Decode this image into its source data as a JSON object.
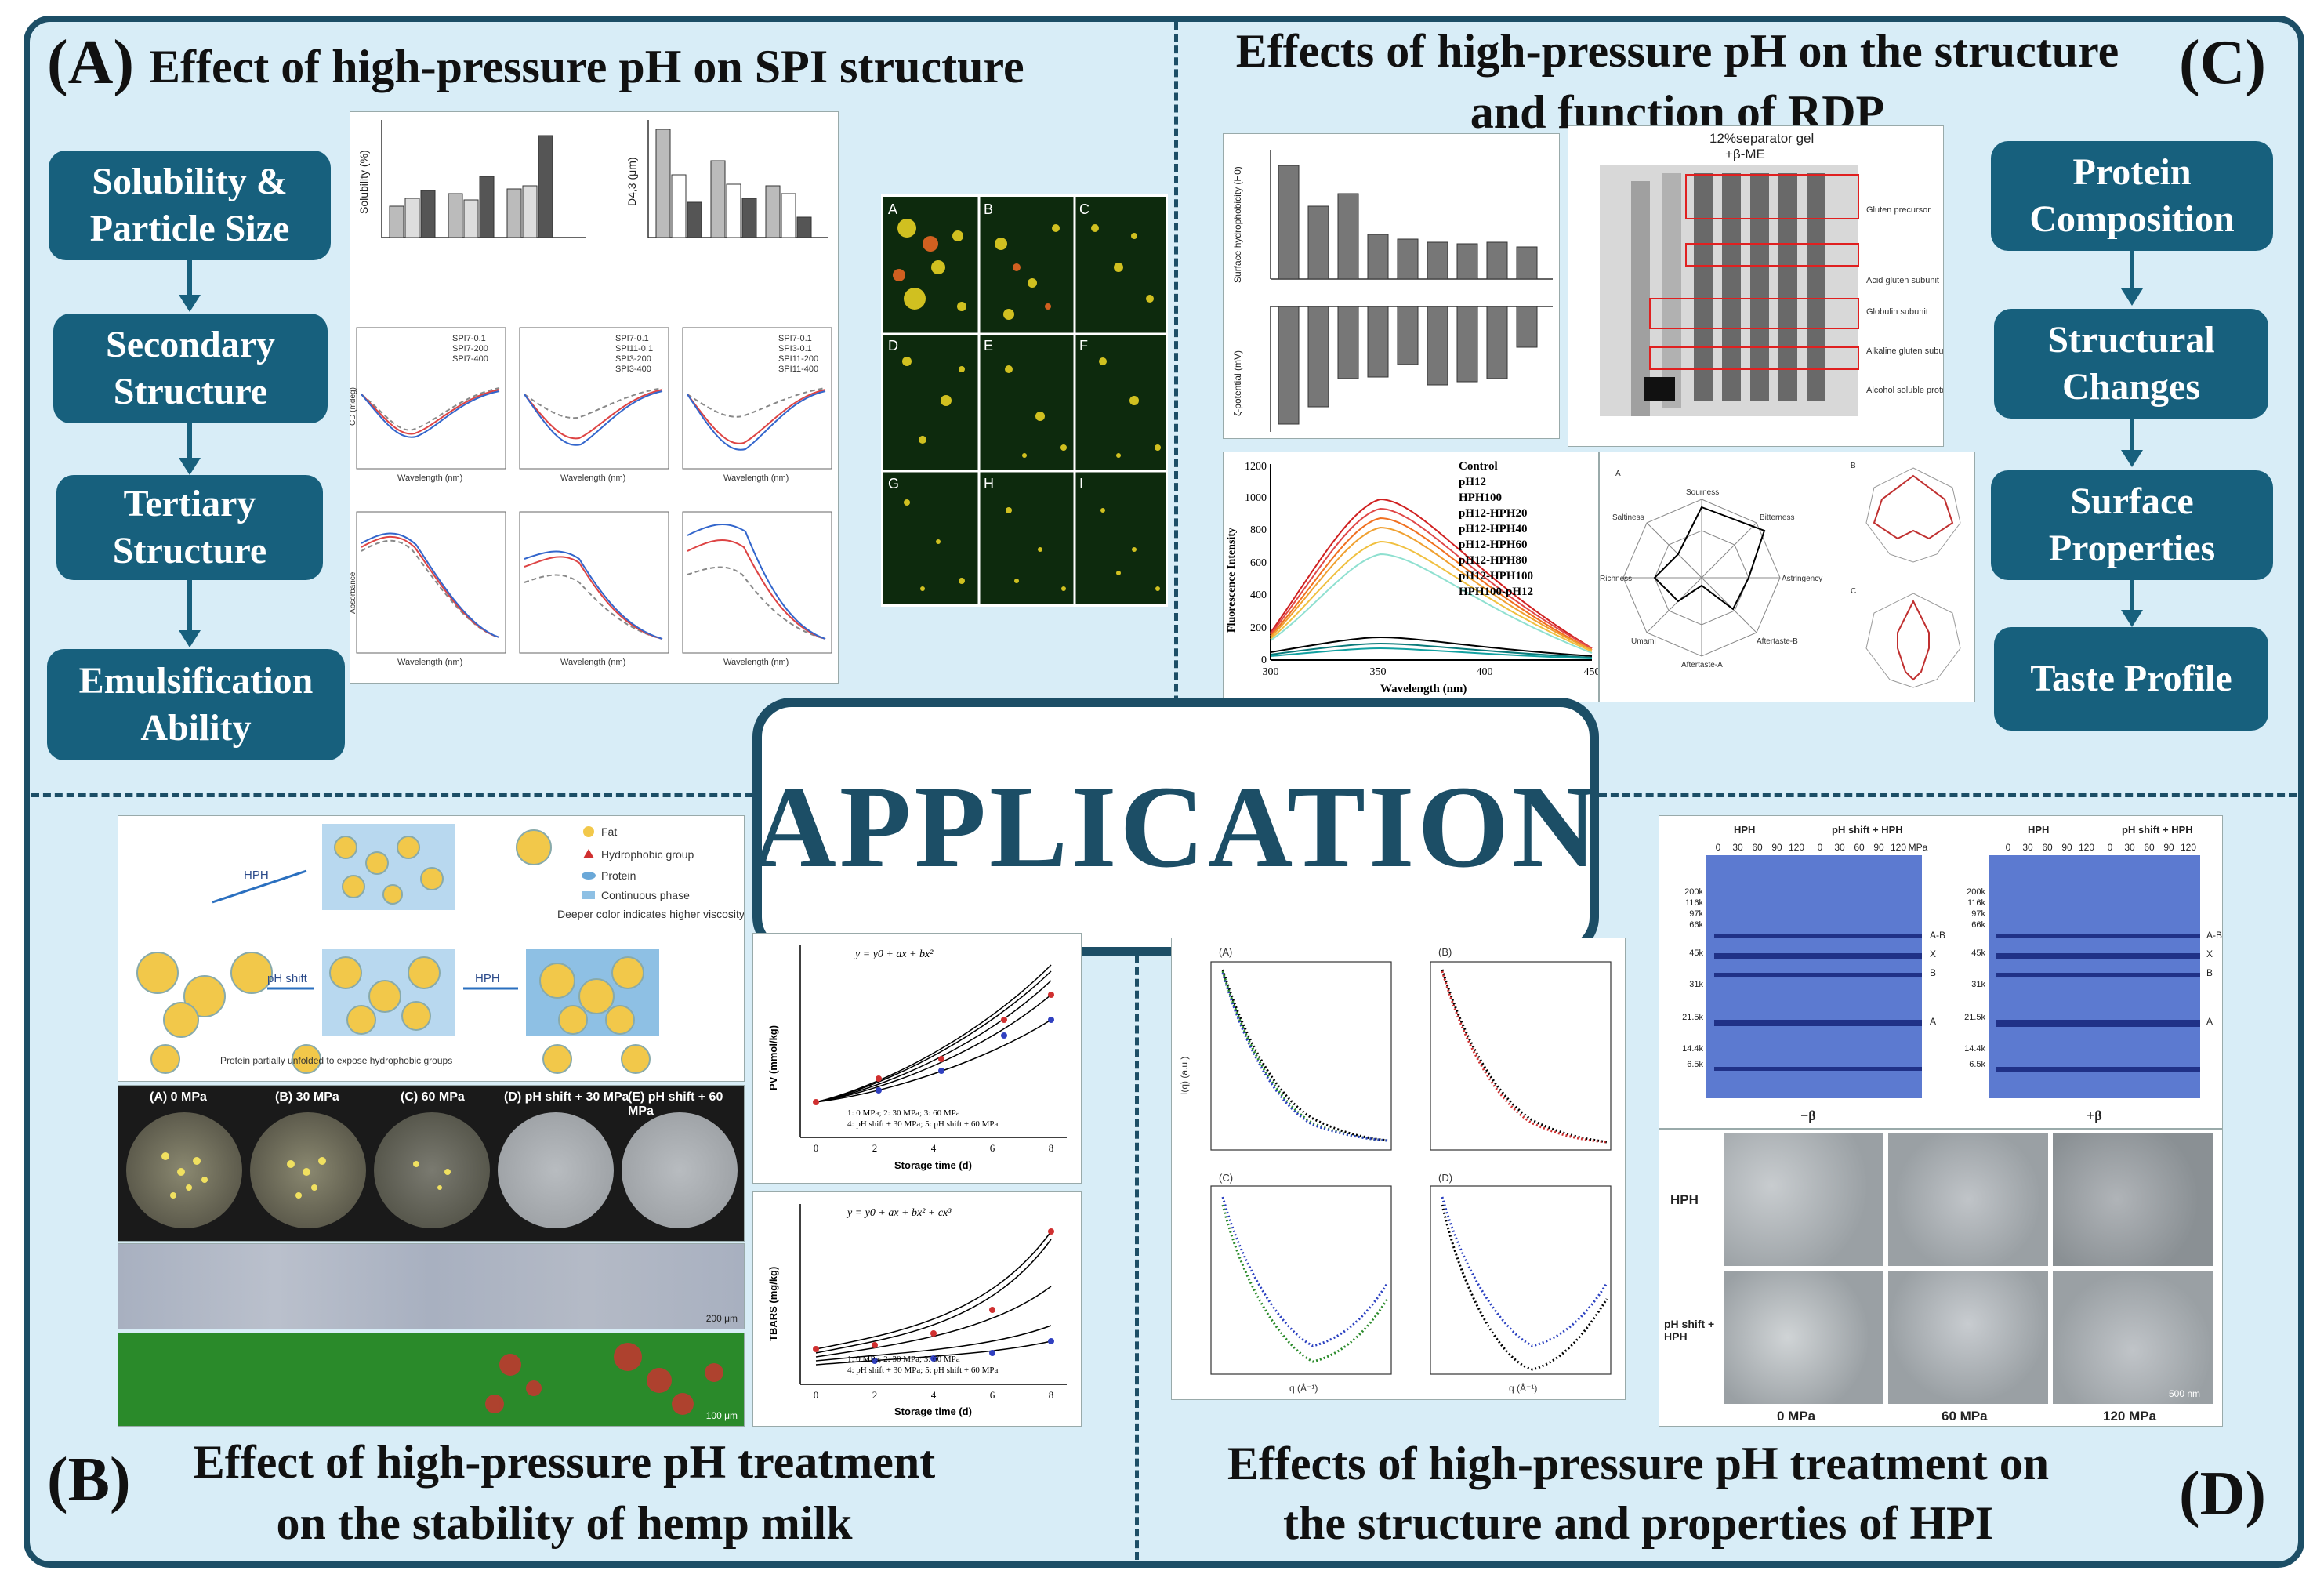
{
  "panel_a": {
    "label": "(A)",
    "title": "Effect of high-pressure pH on SPI structure",
    "flow": [
      "Solubility & Particle Size",
      "Secondary Structure",
      "Tertiary Structure",
      "Emulsification Ability"
    ],
    "chart_labels": {
      "solubility_axis": "Solubility (%)",
      "d43_axis": "D4,3 (μm)",
      "cd_axis": "CD (mdeg)",
      "abs_axis": "Absorbance",
      "wavelength": "Wavelength (nm)"
    },
    "legends": {
      "cd1": [
        "SPI7-0.1",
        "SPI7-200",
        "SPI7-400"
      ],
      "cd2": [
        "SPI7-0.1",
        "SPI11-0.1",
        "SPI3-200",
        "SPI3-400"
      ],
      "cd3": [
        "SPI7-0.1",
        "SPI3-0.1",
        "SPI11-200",
        "SPI11-400"
      ]
    },
    "micro_labels": [
      "A",
      "B",
      "C",
      "D",
      "E",
      "F",
      "G",
      "H",
      "I"
    ]
  },
  "panel_c": {
    "label": "(C)",
    "title_line1": "Effects of high-pressure pH on the structure",
    "title_line2": "and function of RDP",
    "flow": [
      "Protein Composition",
      "Structural Changes",
      "Surface Properties",
      "Taste Profile"
    ],
    "surface_axis": "Surface hydrophobicity (H0)",
    "zeta_axis": "ζ-potential (mV)",
    "gel_title": "12%separator gel",
    "gel_subtitle": "+β-ME",
    "gel_bands": [
      "Gluten precursor",
      "Acid gluten subunit",
      "Globulin subunit",
      "Alkaline gluten subunit",
      "Alcohol soluble protein subunits"
    ],
    "fluor_axis": "Fluorescence Intensity",
    "fluor_xlabel": "Wavelength (nm)",
    "fluor_legend": [
      "Control",
      "pH12",
      "HPH100",
      "pH12-HPH20",
      "pH12-HPH40",
      "pH12-HPH60",
      "pH12-HPH80",
      "pH12-HPH100",
      "HPH100-pH12"
    ],
    "fluor_yticks": [
      "0",
      "200",
      "400",
      "600",
      "800",
      "1000",
      "1200"
    ],
    "fluor_xticks": [
      "300",
      "350",
      "400",
      "450"
    ],
    "radar_axes": [
      "Sourness",
      "Bitterness",
      "Astringency",
      "Aftertaste-B",
      "Aftertaste-A",
      "Umami",
      "Richness",
      "Saltiness"
    ],
    "radar_labels": [
      "A",
      "B",
      "C"
    ]
  },
  "panel_b": {
    "label": "(B)",
    "title_line1": "Effect of high-pressure pH treatment",
    "title_line2": "on the stability of hemp milk",
    "schematic_legend": [
      "Fat",
      "Hydrophobic group",
      "Protein",
      "Continuous phase",
      "Deeper color indicates higher viscosity"
    ],
    "schematic_arrows": [
      "HPH",
      "pH shift",
      "HPH"
    ],
    "schematic_note": "Protein partially unfolded to expose hydrophobic groups",
    "dish_labels": [
      "(A) 0 MPa",
      "(B) 30 MPa",
      "(C) 60 MPa",
      "(D) pH shift + 30 MPa",
      "(E) pH shift + 60 MPa"
    ],
    "scale_1": "200 μm",
    "scale_2": "100 μm",
    "pv_axis": "PV (mmol/kg)",
    "pv_equation": "y = y0 + ax + bx²",
    "tbars_axis": "TBARS (mg/kg)",
    "tbars_equation": "y = y0 + ax + bx² + cx³",
    "storage_time": "Storage time (d)",
    "legend_note_1": "1: 0 MPa; 2: 30 MPa; 3: 60 MPa",
    "legend_note_2": "4: pH shift + 30 MPa; 5: pH shift + 60 MPa",
    "xticks": [
      "0",
      "2",
      "4",
      "6",
      "8"
    ]
  },
  "panel_d": {
    "label": "(D)",
    "title_line1": "Effects of high-pressure pH treatment on",
    "title_line2": "the structure and properties of HPI",
    "saxs_labels": [
      "(A)",
      "(B)",
      "(C)",
      "(D)"
    ],
    "saxs_xlabel": "q (Å⁻¹)",
    "saxs_ylabel": "I(q) (a.u.)",
    "gel_groups": [
      "HPH",
      "pH shift + HPH"
    ],
    "gel_pressures": [
      "0",
      "30",
      "60",
      "90",
      "120"
    ],
    "gel_unit": "MPa",
    "gel_markers": [
      "200k",
      "116k",
      "97k",
      "66k",
      "45k",
      "31k",
      "21.5k",
      "14.4k",
      "6.5k"
    ],
    "gel_bands": [
      "A-B",
      "X",
      "B",
      "A"
    ],
    "gel_captions": [
      "−β",
      "+β"
    ],
    "tem_rows": [
      "HPH",
      "pH shift + HPH"
    ],
    "tem_cols": [
      "0 MPa",
      "60 MPa",
      "120 MPa"
    ],
    "tem_scale": "500 nm"
  },
  "center": {
    "application": "APPLICATION"
  },
  "colors": {
    "frame": "#1c4e66",
    "flowbox": "#17607d",
    "background": "#d8edf7"
  }
}
